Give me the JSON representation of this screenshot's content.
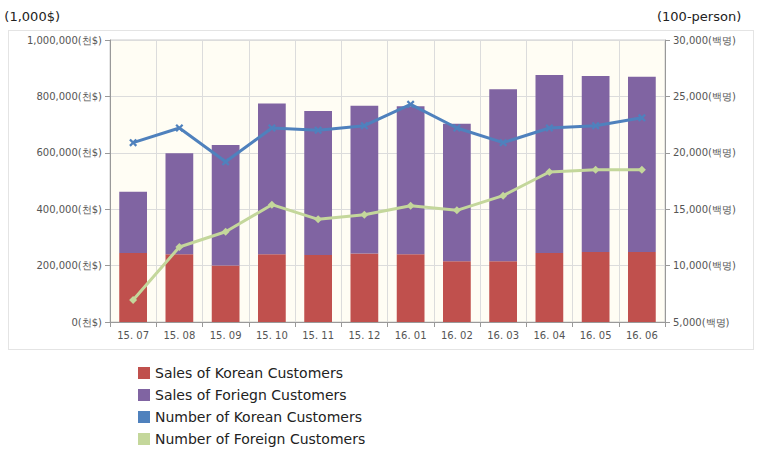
{
  "chart_data": {
    "type": "bar",
    "stacked": true,
    "grid": true,
    "legend": "bottom",
    "y_label": "(1,000$)",
    "y2_label": "(100-person)",
    "categories": [
      "15. 07",
      "15. 08",
      "15. 09",
      "15. 10",
      "15. 11",
      "15. 12",
      "16. 01",
      "16. 02",
      "16. 03",
      "16. 04",
      "16. 05",
      "16. 06"
    ],
    "ylim": [
      0,
      1000000
    ],
    "yticks": [
      {
        "value": 0,
        "label": "0(천$)"
      },
      {
        "value": 200000,
        "label": "200,000(천$)"
      },
      {
        "value": 400000,
        "label": "400,000(천$)"
      },
      {
        "value": 600000,
        "label": "600,000(천$)"
      },
      {
        "value": 800000,
        "label": "800,000(천$)"
      },
      {
        "value": 1000000,
        "label": "1,000,000(천$)"
      }
    ],
    "y2lim": [
      5000,
      30000
    ],
    "y2ticks": [
      {
        "value": 5000,
        "label": "5,000(백명)"
      },
      {
        "value": 10000,
        "label": "10,000(백명)"
      },
      {
        "value": 15000,
        "label": "15,000(백명)"
      },
      {
        "value": 20000,
        "label": "20,000(백명)"
      },
      {
        "value": 25000,
        "label": "25,000(백명)"
      },
      {
        "value": 30000,
        "label": "30,000(백명)"
      }
    ],
    "series": [
      {
        "name": "Sales of Korean Customers",
        "type": "bar",
        "color": "#c0504d",
        "values": [
          245000,
          240000,
          200000,
          240000,
          238000,
          243000,
          240000,
          215000,
          215000,
          245000,
          248000,
          248000
        ]
      },
      {
        "name": "Sales of Foriegn Customers",
        "type": "bar",
        "color": "#8064a2",
        "values": [
          217000,
          358000,
          428000,
          535000,
          510000,
          524000,
          525000,
          488000,
          610000,
          631000,
          624000,
          622000
        ]
      },
      {
        "name": "Number of Korean Customers",
        "type": "line",
        "axis": "y2",
        "color": "#4f81bd",
        "marker": "x",
        "values": [
          20900,
          22200,
          19200,
          22200,
          22000,
          22400,
          24300,
          22200,
          20900,
          22200,
          22400,
          23100
        ]
      },
      {
        "name": "Number of Foreign Customers",
        "type": "line",
        "axis": "y2",
        "color": "#c4d79b",
        "marker": "diamond",
        "values": [
          6950,
          11650,
          13000,
          15400,
          14100,
          14500,
          15300,
          14900,
          16200,
          18300,
          18500,
          18500
        ]
      }
    ]
  }
}
